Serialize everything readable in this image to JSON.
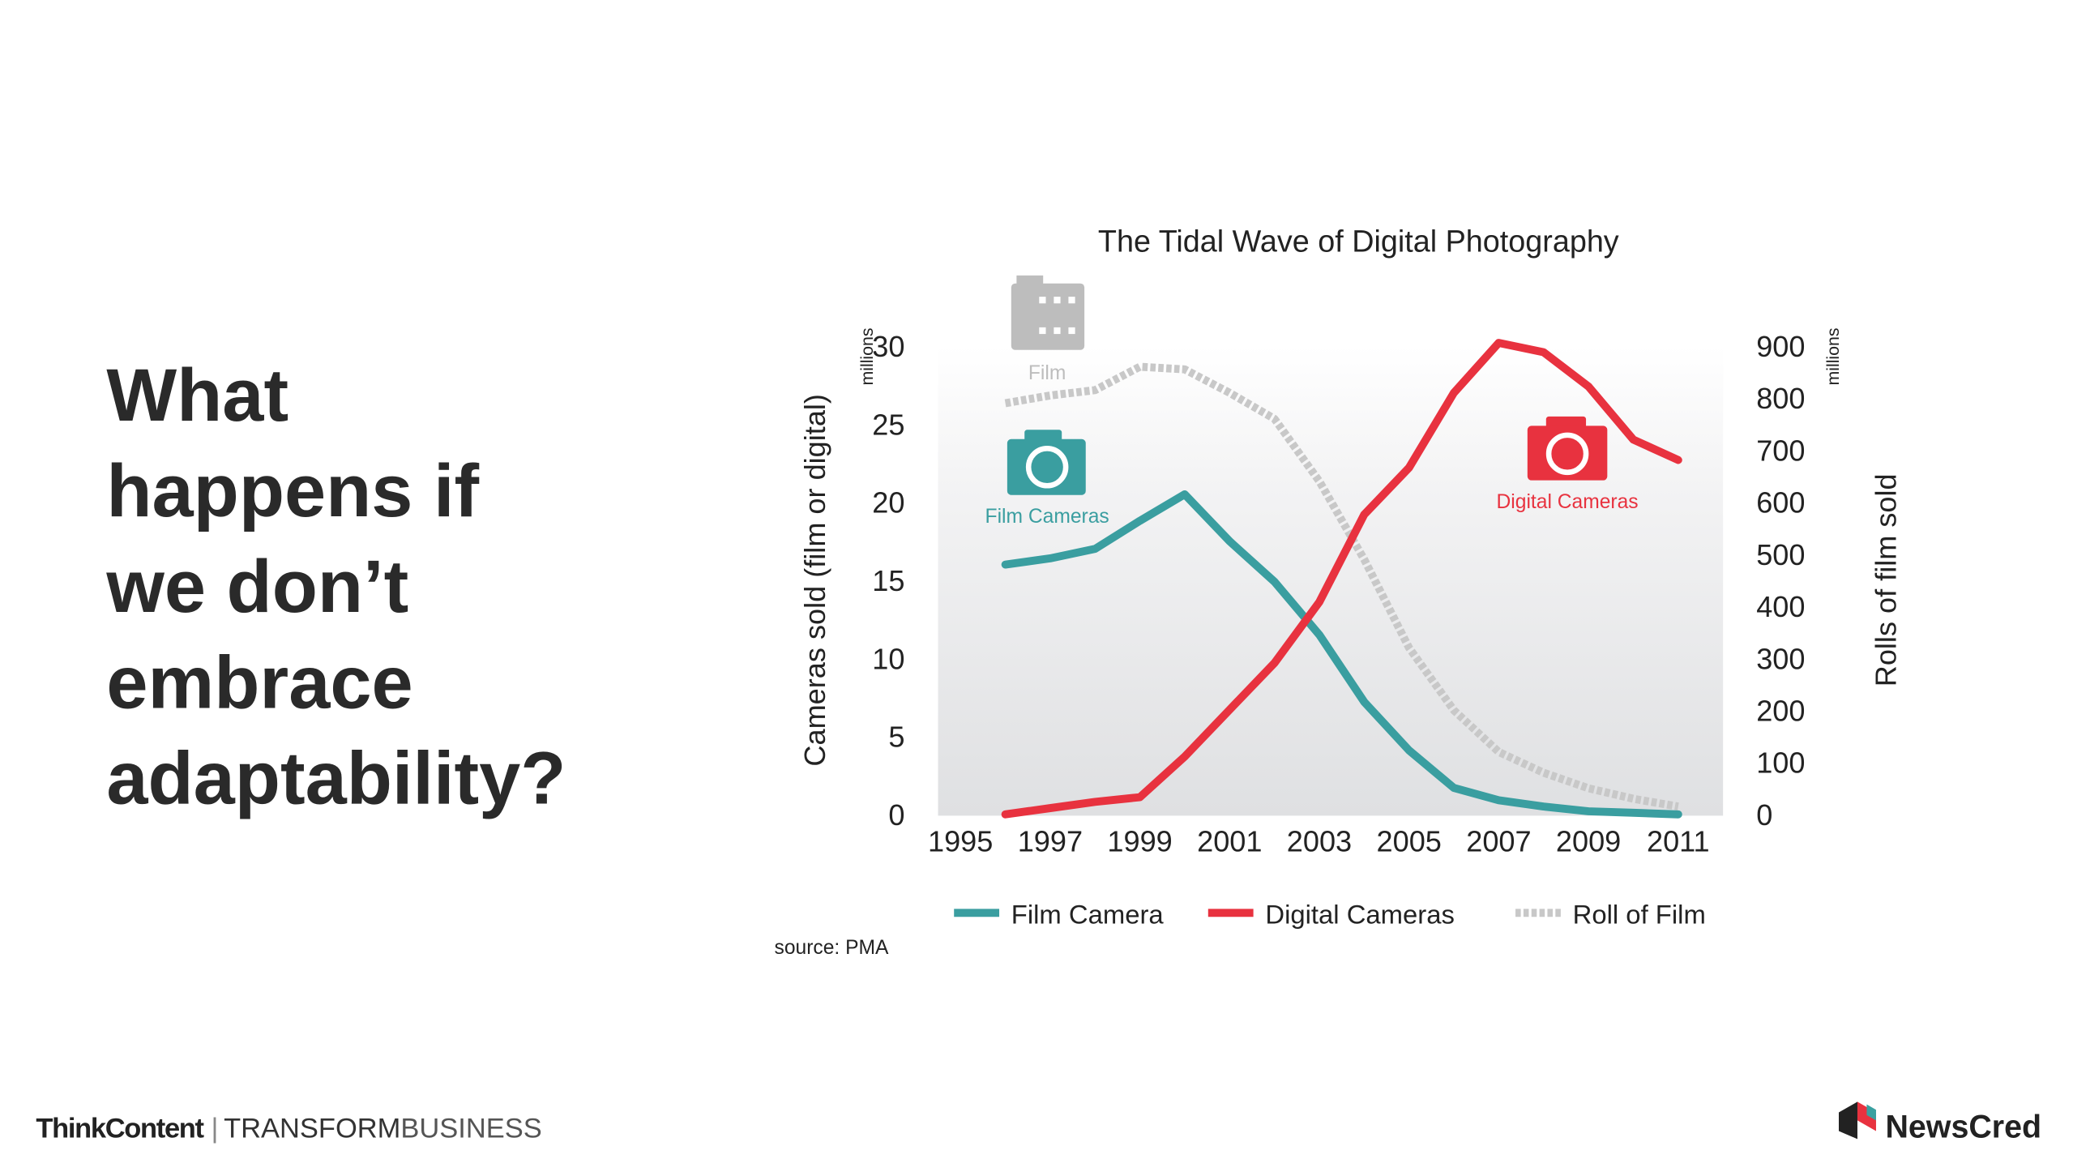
{
  "heading": [
    "What",
    "happens if",
    "we don’t",
    "embrace",
    "adaptability?"
  ],
  "chart_data": {
    "type": "line",
    "title": "The Tidal Wave of Digital Photography",
    "y_label": "Cameras sold (film or digital)",
    "y_unit": "millions",
    "y2_label": "Rolls of film sold",
    "y2_unit": "millions",
    "x": [
      1996,
      1997,
      1998,
      1999,
      2000,
      2001,
      2002,
      2003,
      2004,
      2005,
      2006,
      2007,
      2008,
      2009,
      2010,
      2011
    ],
    "series": [
      {
        "name": "Film Camera",
        "color": "#3a9ea0",
        "values": [
          16,
          16.4,
          17,
          18.8,
          20.5,
          17.5,
          14.9,
          11.5,
          7.2,
          4.1,
          1.7,
          0.9,
          0.5,
          0.2,
          0.1,
          0
        ]
      },
      {
        "name": "Digital Cameras",
        "color": "#e8323f",
        "values": [
          0,
          0.4,
          0.8,
          1.1,
          3.7,
          6.7,
          9.7,
          13.6,
          19.2,
          22.2,
          27,
          30.2,
          29.6,
          27.4,
          24,
          22.7
        ]
      },
      {
        "name": "Roll of Film",
        "color": "#c8c8c8",
        "axis": "y2",
        "line_style": "dashed",
        "values": [
          790,
          805,
          815,
          860,
          855,
          810,
          760,
          640,
          490,
          320,
          200,
          120,
          80,
          50,
          30,
          15
        ]
      }
    ],
    "annotations": [
      "Film",
      "Film Cameras",
      "Digital Cameras"
    ],
    "xlim": [
      1994.5,
      2012
    ],
    "xticks": [
      1995,
      1997,
      1999,
      2001,
      2003,
      2005,
      2007,
      2009,
      2011
    ],
    "ylim": [
      0,
      30
    ],
    "yticks": [
      0,
      5,
      10,
      15,
      20,
      25,
      30
    ],
    "y2lim": [
      0,
      900
    ],
    "y2ticks": [
      0,
      100,
      200,
      300,
      400,
      500,
      600,
      700,
      800,
      900
    ],
    "source": "source: PMA"
  },
  "footer": {
    "left_1": "ThinkContent",
    "left_2": "TRANSFORM",
    "left_3": "BUSINESS",
    "right": "NewsCred"
  }
}
